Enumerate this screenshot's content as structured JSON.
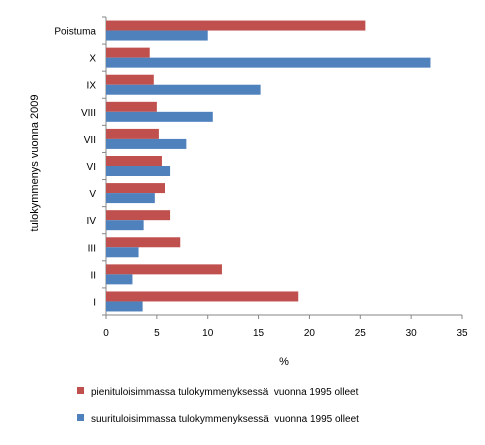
{
  "chart_data": {
    "type": "bar",
    "orientation": "horizontal",
    "categories": [
      "Poistuma",
      "X",
      "IX",
      "VIII",
      "VII",
      "VI",
      "V",
      "IV",
      "III",
      "II",
      "I"
    ],
    "series": [
      {
        "name": "pienituloisimmassa tulokymmenyksessä  vuonna 1995 olleet",
        "color": "#C0504D",
        "values": [
          25.5,
          4.3,
          4.7,
          5.0,
          5.2,
          5.5,
          5.8,
          6.3,
          7.3,
          11.4,
          18.9
        ]
      },
      {
        "name": "suurituloisimmassa tulokymmenyksessä  vuonna 1995 olleet",
        "color": "#4F81BD",
        "values": [
          10.0,
          31.9,
          15.2,
          10.5,
          7.9,
          6.3,
          4.8,
          3.7,
          3.2,
          2.6,
          3.6
        ]
      }
    ],
    "xlabel": "%",
    "ylabel": "tulokymmenys vuonna 2009",
    "xlim": [
      0,
      35
    ],
    "xticks": [
      "0",
      "5",
      "10",
      "15",
      "20",
      "25",
      "30",
      "35"
    ],
    "grid": false,
    "legend_position": "bottom"
  }
}
